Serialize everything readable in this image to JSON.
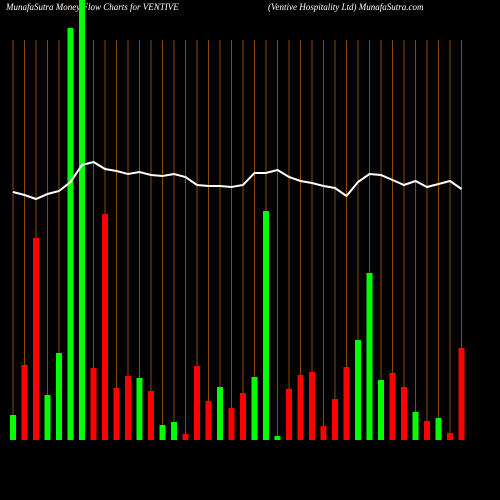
{
  "chart_data": {
    "type": "bar",
    "title": "MunafaSutra  Money Flow  Charts for VENTIVE",
    "subtitle": "(Ventive   Hospitality Ltd) MunafaSutra.com",
    "categories": [
      null,
      null,
      null,
      null,
      null,
      null,
      null,
      null,
      null,
      null,
      null,
      null,
      null,
      null,
      null,
      null,
      null,
      null,
      null,
      null,
      null,
      null,
      null,
      null,
      null,
      null,
      null,
      null,
      null,
      null,
      null,
      null,
      null,
      null,
      null,
      null,
      null,
      null,
      null,
      null
    ],
    "values": [
      25,
      75,
      202,
      45,
      87,
      412,
      440,
      72,
      226,
      52,
      64,
      62,
      49,
      15,
      18,
      6,
      74,
      39,
      53,
      32,
      47,
      63,
      229,
      4,
      51,
      65,
      68,
      14,
      41,
      73,
      100,
      167,
      60,
      67,
      53,
      28,
      19,
      22,
      7,
      92
    ],
    "colors": [
      "#00ff00",
      "#ff0000",
      "#ff0000",
      "#00ff00",
      "#00ff00",
      "#00ff00",
      "#00ff00",
      "#ff0000",
      "#ff0000",
      "#ff0000",
      "#ff0000",
      "#00ff00",
      "#ff0000",
      "#00ff00",
      "#00ff00",
      "#ff0000",
      "#ff0000",
      "#ff0000",
      "#00ff00",
      "#ff0000",
      "#ff0000",
      "#00ff00",
      "#00ff00",
      "#00ff00",
      "#ff0000",
      "#ff0000",
      "#ff0000",
      "#ff0000",
      "#ff0000",
      "#ff0000",
      "#00ff00",
      "#00ff00",
      "#00ff00",
      "#ff0000",
      "#ff0000",
      "#00ff00",
      "#ff0000",
      "#00ff00",
      "#ff0000",
      "#ff0000"
    ],
    "line": {
      "color": "#ffffff",
      "values": [
        248,
        245,
        241,
        246,
        249,
        258,
        275,
        278,
        271,
        269,
        266,
        268,
        265,
        264,
        266,
        263,
        255,
        254,
        254,
        253,
        255,
        267,
        267,
        270,
        263,
        259,
        257,
        254,
        252,
        244,
        258,
        266,
        265,
        260,
        255,
        259,
        253,
        256,
        259,
        251
      ]
    },
    "ylim": [
      0,
      440
    ],
    "grid_color": "#8a4a0a"
  }
}
